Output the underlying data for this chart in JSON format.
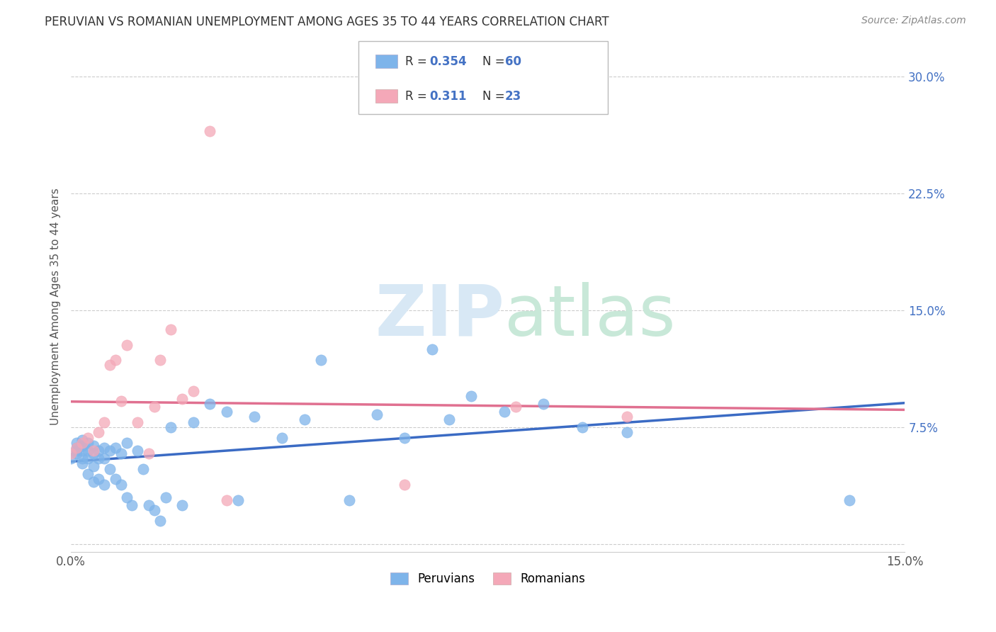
{
  "title": "PERUVIAN VS ROMANIAN UNEMPLOYMENT AMONG AGES 35 TO 44 YEARS CORRELATION CHART",
  "source": "Source: ZipAtlas.com",
  "ylabel": "Unemployment Among Ages 35 to 44 years",
  "xlim": [
    0.0,
    0.15
  ],
  "ylim": [
    -0.005,
    0.31
  ],
  "peruvian_color": "#7EB4EA",
  "romanian_color": "#F4A8B8",
  "peruvian_line_color": "#3B6BC4",
  "romanian_line_color": "#E07090",
  "R_peruvian": 0.354,
  "N_peruvian": 60,
  "R_romanian": 0.311,
  "N_romanian": 23,
  "background_color": "#FFFFFF",
  "grid_color": "#CCCCCC",
  "peruvians_x": [
    0.0,
    0.001,
    0.001,
    0.001,
    0.001,
    0.002,
    0.002,
    0.002,
    0.002,
    0.002,
    0.003,
    0.003,
    0.003,
    0.003,
    0.004,
    0.004,
    0.004,
    0.004,
    0.005,
    0.005,
    0.005,
    0.006,
    0.006,
    0.006,
    0.007,
    0.007,
    0.008,
    0.008,
    0.009,
    0.009,
    0.01,
    0.01,
    0.011,
    0.012,
    0.013,
    0.014,
    0.015,
    0.016,
    0.017,
    0.018,
    0.02,
    0.022,
    0.025,
    0.028,
    0.03,
    0.033,
    0.038,
    0.042,
    0.045,
    0.05,
    0.055,
    0.06,
    0.065,
    0.068,
    0.072,
    0.078,
    0.085,
    0.092,
    0.1,
    0.14
  ],
  "peruvians_y": [
    0.055,
    0.058,
    0.06,
    0.062,
    0.065,
    0.052,
    0.055,
    0.06,
    0.063,
    0.067,
    0.045,
    0.055,
    0.06,
    0.065,
    0.04,
    0.05,
    0.058,
    0.063,
    0.042,
    0.055,
    0.06,
    0.038,
    0.055,
    0.062,
    0.048,
    0.06,
    0.042,
    0.062,
    0.038,
    0.058,
    0.03,
    0.065,
    0.025,
    0.06,
    0.048,
    0.025,
    0.022,
    0.015,
    0.03,
    0.075,
    0.025,
    0.078,
    0.09,
    0.085,
    0.028,
    0.082,
    0.068,
    0.08,
    0.118,
    0.028,
    0.083,
    0.068,
    0.125,
    0.08,
    0.095,
    0.085,
    0.09,
    0.075,
    0.072,
    0.028
  ],
  "romanians_x": [
    0.0,
    0.001,
    0.002,
    0.003,
    0.004,
    0.005,
    0.006,
    0.007,
    0.008,
    0.009,
    0.01,
    0.012,
    0.014,
    0.015,
    0.016,
    0.018,
    0.02,
    0.022,
    0.025,
    0.028,
    0.06,
    0.08,
    0.1
  ],
  "romanians_y": [
    0.058,
    0.062,
    0.065,
    0.068,
    0.06,
    0.072,
    0.078,
    0.115,
    0.118,
    0.092,
    0.128,
    0.078,
    0.058,
    0.088,
    0.118,
    0.138,
    0.093,
    0.098,
    0.265,
    0.028,
    0.038,
    0.088,
    0.082
  ]
}
